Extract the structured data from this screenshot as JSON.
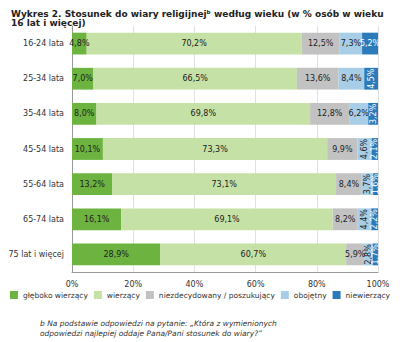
{
  "chart_data": {
    "type": "bar",
    "orientation": "horizontal",
    "stacked": true,
    "data_labels": true,
    "grid": true,
    "legend": "bottom",
    "title": "Wykres 2. Stosunek do wiary religijnejᵇ według wieku (w % osób w wieku 16 lat i więcej)",
    "annotations": [
      "b Na podstawie odpowiedzi na pytanie: „Która z wymienionych odpowiedzi najlepiej oddaje Pana/Pani stosunek do wiary?”"
    ],
    "categories": [
      "16-24 lata",
      "25-34 lata",
      "35-44 lata",
      "45-54 lata",
      "55-64 lata",
      "65-74 lata",
      "75 lat i więcej"
    ],
    "xlim": [
      0,
      100
    ],
    "xticks": [
      {
        "value": 0,
        "label": "0%"
      },
      {
        "value": 20,
        "label": "20%"
      },
      {
        "value": 40,
        "label": "40%"
      },
      {
        "value": 60,
        "label": "60%"
      },
      {
        "value": 80,
        "label": "80%"
      },
      {
        "value": 100,
        "label": "100%"
      }
    ],
    "series": [
      {
        "name": "głęboko wierzący",
        "color": "#6cb33f",
        "values": [
          4.8,
          7.0,
          8.0,
          10.1,
          13.2,
          16.1,
          28.9
        ],
        "value_labels": [
          "4,8%",
          "7,0%",
          "8,0%",
          "10,1%",
          "13,2%",
          "16,1%",
          "28,9%"
        ]
      },
      {
        "name": "wierzący",
        "color": "#c6e1a6",
        "values": [
          70.2,
          66.5,
          69.8,
          73.3,
          73.1,
          69.1,
          60.7
        ],
        "value_labels": [
          "70,2%",
          "66,5%",
          "69,8%",
          "73,3%",
          "73,1%",
          "69,1%",
          "60,7%"
        ]
      },
      {
        "name": "niezdecydowany / poszukujący",
        "color": "#c2c2c2",
        "values": [
          12.5,
          13.6,
          12.8,
          9.9,
          8.4,
          8.2,
          5.9
        ],
        "value_labels": [
          "12,5%",
          "13,6%",
          "12,8%",
          "9,9%",
          "8,4%",
          "8,2%",
          "5,9%"
        ]
      },
      {
        "name": "obojętny",
        "color": "#a8cde6",
        "values": [
          7.3,
          8.4,
          6.2,
          4.6,
          3.7,
          4.4,
          2.8
        ],
        "value_labels": [
          "7,3%",
          "8,4%",
          "6,2%",
          "4,6%",
          "3,7%",
          "4,4%",
          "2,8%"
        ]
      },
      {
        "name": "niewierzący",
        "color": "#2b7bba",
        "values": [
          5.2,
          4.5,
          3.2,
          2.1,
          1.6,
          2.2,
          1.7
        ],
        "value_labels": [
          "5,2%",
          "4,5%",
          "3,2%",
          "2,1%",
          "1,6%",
          "2,2%",
          "1,7%"
        ]
      }
    ]
  }
}
